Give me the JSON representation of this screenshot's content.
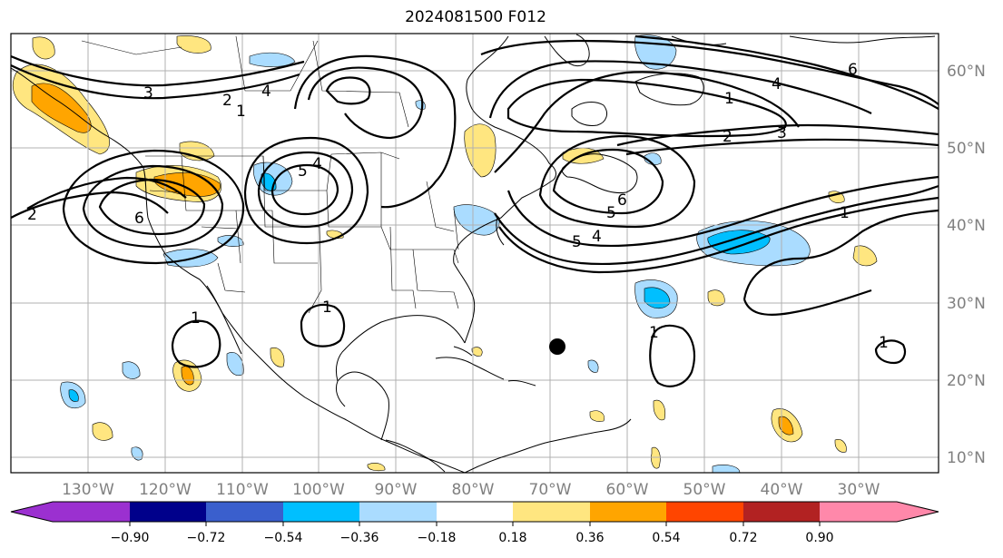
{
  "title": "2024081500 F012",
  "map": {
    "lon_labels": [
      "130°W",
      "120°W",
      "110°W",
      "100°W",
      "90°W",
      "80°W",
      "70°W",
      "60°W",
      "50°W",
      "40°W",
      "30°W"
    ],
    "lat_labels": [
      "60°N",
      "50°N",
      "40°N",
      "30°N",
      "20°N",
      "10°N"
    ],
    "contour_labels": [
      "1",
      "2",
      "3",
      "4",
      "5",
      "6"
    ],
    "storm_marker": {
      "lon": -69.5,
      "lat": 24.3
    }
  },
  "colorbar": {
    "ticks": [
      "−0.90",
      "−0.72",
      "−0.54",
      "−0.36",
      "−0.18",
      "0.18",
      "0.36",
      "0.54",
      "0.72",
      "0.90"
    ],
    "colors": [
      "#9b30d0",
      "#00008b",
      "#3a5fcd",
      "#00bfff",
      "#aadcff",
      "#ffffff",
      "#ffe680",
      "#ffa500",
      "#ff4500",
      "#b22222",
      "#ff88aa"
    ]
  }
}
